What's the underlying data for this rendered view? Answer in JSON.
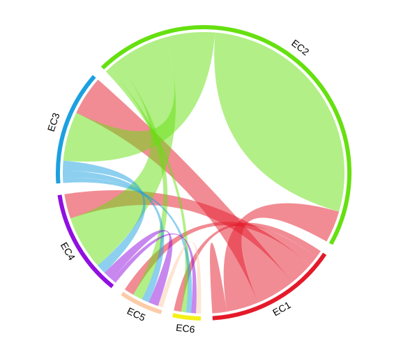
{
  "chart_data": {
    "type": "chord",
    "title": "",
    "sectors": [
      {
        "name": "EC1",
        "color": "#E41A2A"
      },
      {
        "name": "EC2",
        "color": "#66E010"
      },
      {
        "name": "EC3",
        "color": "#1CA0E0"
      },
      {
        "name": "EC4",
        "color": "#9010E0"
      },
      {
        "name": "EC5",
        "color": "#FCCCA8"
      },
      {
        "name": "EC6",
        "color": "#F4F018"
      }
    ],
    "links": [
      {
        "from": "EC1",
        "to": "EC1",
        "value": 3
      },
      {
        "from": "EC1",
        "to": "EC2",
        "value": 13
      },
      {
        "from": "EC1",
        "to": "EC3",
        "value": 16
      },
      {
        "from": "EC1",
        "to": "EC4",
        "value": 10
      },
      {
        "from": "EC1",
        "to": "EC5",
        "value": 4
      },
      {
        "from": "EC1",
        "to": "EC6",
        "value": 3
      },
      {
        "from": "EC2",
        "to": "EC2",
        "value": 50
      },
      {
        "from": "EC2",
        "to": "EC3",
        "value": 20
      },
      {
        "from": "EC2",
        "to": "EC4",
        "value": 22
      },
      {
        "from": "EC2",
        "to": "EC5",
        "value": 4
      },
      {
        "from": "EC2",
        "to": "EC6",
        "value": 2
      },
      {
        "from": "EC3",
        "to": "EC4",
        "value": 4
      },
      {
        "from": "EC3",
        "to": "EC5",
        "value": 3
      },
      {
        "from": "EC3",
        "to": "EC6",
        "value": 2
      },
      {
        "from": "EC4",
        "to": "EC5",
        "value": 4
      },
      {
        "from": "EC4",
        "to": "EC6",
        "value": 2
      },
      {
        "from": "EC5",
        "to": "EC6",
        "value": 2
      }
    ]
  }
}
